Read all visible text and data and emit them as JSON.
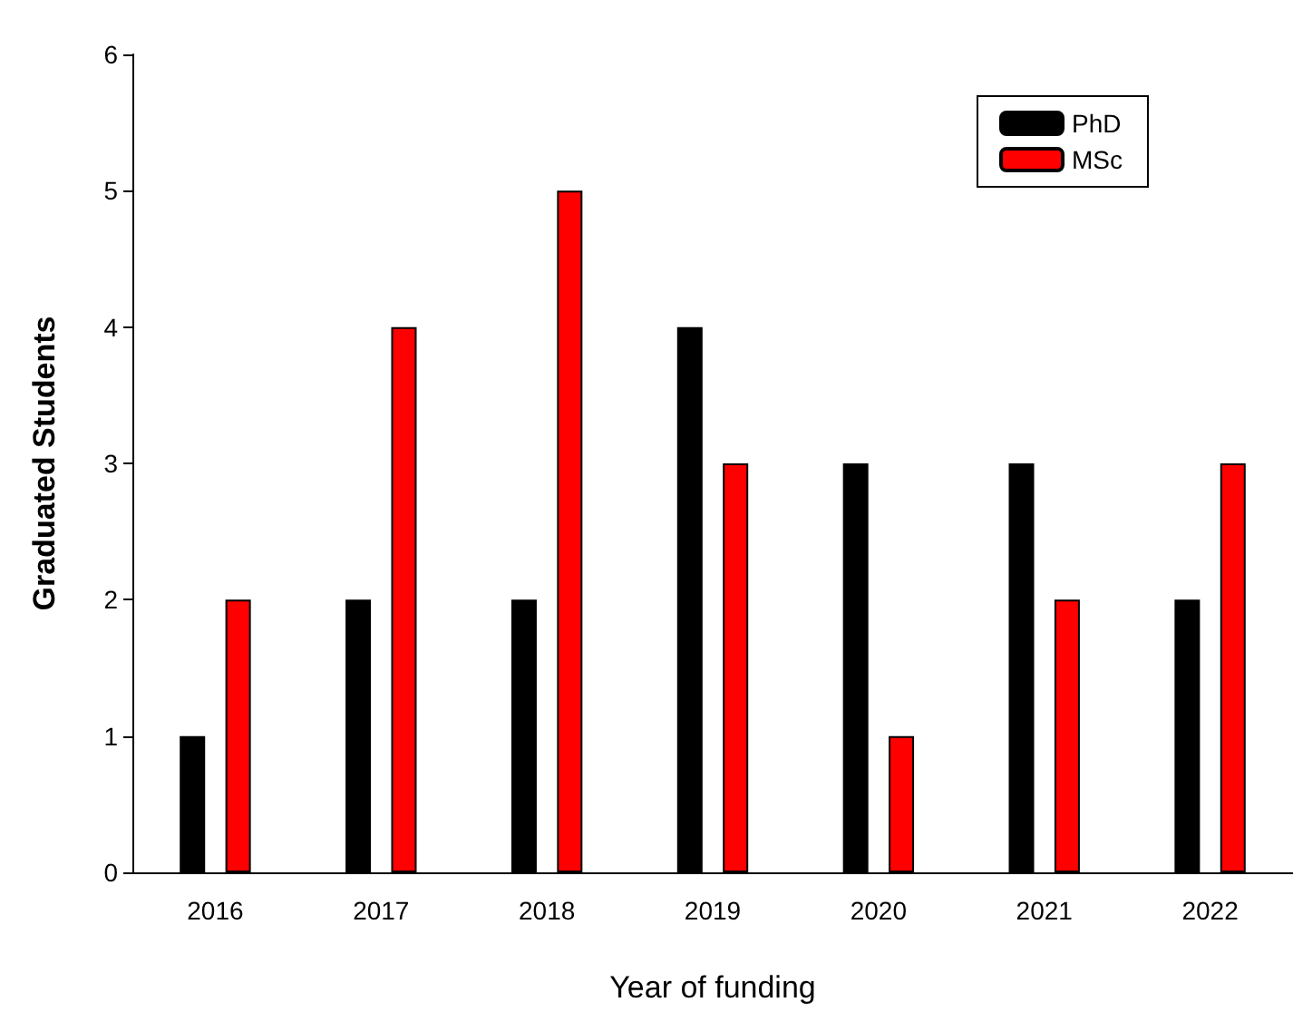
{
  "chart_data": {
    "type": "bar",
    "xlabel": "Year of funding",
    "ylabel": "Graduated Students",
    "categories": [
      "2016",
      "2017",
      "2018",
      "2019",
      "2020",
      "2021",
      "2022"
    ],
    "series": [
      {
        "name": "PhD",
        "color": "#000000",
        "values": [
          1,
          2,
          2,
          4,
          3,
          3,
          2
        ]
      },
      {
        "name": "MSc",
        "color": "#ff0000",
        "values": [
          2,
          4,
          5,
          3,
          1,
          2,
          3
        ]
      }
    ],
    "ylim": [
      0,
      6
    ],
    "yticks": [
      0,
      1,
      2,
      3,
      4,
      5,
      6
    ],
    "grid": false,
    "legend": "top right"
  }
}
